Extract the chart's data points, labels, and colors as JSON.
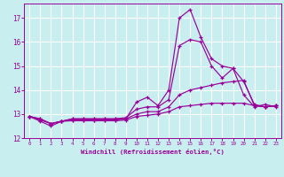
{
  "xlabel": "Windchill (Refroidissement éolien,°C)",
  "bg_color": "#c8eef0",
  "line_color": "#990099",
  "grid_color": "#ffffff",
  "xlim": [
    -0.5,
    23.5
  ],
  "ylim": [
    12,
    17.6
  ],
  "yticks": [
    12,
    13,
    14,
    15,
    16,
    17
  ],
  "xticks": [
    0,
    1,
    2,
    3,
    4,
    5,
    6,
    7,
    8,
    9,
    10,
    11,
    12,
    13,
    14,
    15,
    16,
    17,
    18,
    19,
    20,
    21,
    22,
    23
  ],
  "series": [
    [
      12.9,
      12.7,
      12.5,
      12.7,
      12.8,
      12.8,
      12.8,
      12.8,
      12.8,
      12.8,
      13.5,
      13.7,
      13.35,
      14.0,
      17.0,
      17.35,
      16.2,
      15.3,
      15.0,
      14.9,
      13.8,
      13.3,
      13.4,
      13.3
    ],
    [
      12.9,
      12.8,
      12.6,
      12.7,
      12.8,
      12.8,
      12.8,
      12.8,
      12.8,
      12.85,
      13.2,
      13.3,
      13.3,
      13.6,
      15.85,
      16.1,
      16.0,
      15.0,
      14.5,
      14.9,
      14.35,
      13.4,
      13.3,
      13.35
    ],
    [
      12.9,
      12.8,
      12.6,
      12.7,
      12.75,
      12.75,
      12.75,
      12.75,
      12.75,
      12.8,
      13.0,
      13.1,
      13.1,
      13.3,
      13.8,
      14.0,
      14.1,
      14.2,
      14.3,
      14.35,
      14.4,
      13.35,
      13.3,
      13.35
    ],
    [
      12.9,
      12.75,
      12.6,
      12.7,
      12.72,
      12.72,
      12.72,
      12.72,
      12.72,
      12.75,
      12.9,
      12.95,
      13.0,
      13.1,
      13.3,
      13.35,
      13.4,
      13.45,
      13.45,
      13.45,
      13.45,
      13.35,
      13.3,
      13.35
    ]
  ]
}
